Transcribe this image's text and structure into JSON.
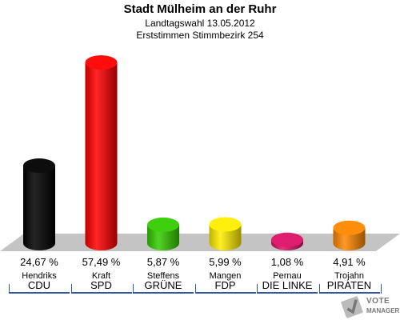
{
  "header": {
    "title": "Stadt Mülheim an der Ruhr",
    "subtitle1": "Landtagswahl 13.05.2012",
    "subtitle2": "Erststimmen Stimmbezirk 254"
  },
  "chart_data": {
    "type": "bar",
    "categories": [
      "CDU",
      "SPD",
      "GRÜNE",
      "FDP",
      "DIE LINKE",
      "PIRATEN"
    ],
    "candidates": [
      "Hendriks",
      "Kraft",
      "Steffens",
      "Mangen",
      "Pernau",
      "Trojahn"
    ],
    "values": [
      24.67,
      57.49,
      5.87,
      5.99,
      1.08,
      4.91
    ],
    "value_labels": [
      "24,67 %",
      "57,49 %",
      "5,87 %",
      "5,99 %",
      "1,08 %",
      "4,91 %"
    ],
    "colors": [
      "#000000",
      "#ff0000",
      "#33cc00",
      "#ffee00",
      "#dd1166",
      "#ff8800"
    ],
    "title": "Stadt Mülheim an der Ruhr",
    "xlabel": "",
    "ylabel": ""
  },
  "logo": {
    "line1": "VOTE",
    "line2": "MANAGER",
    "icon": "vote-manager-logo-icon"
  }
}
